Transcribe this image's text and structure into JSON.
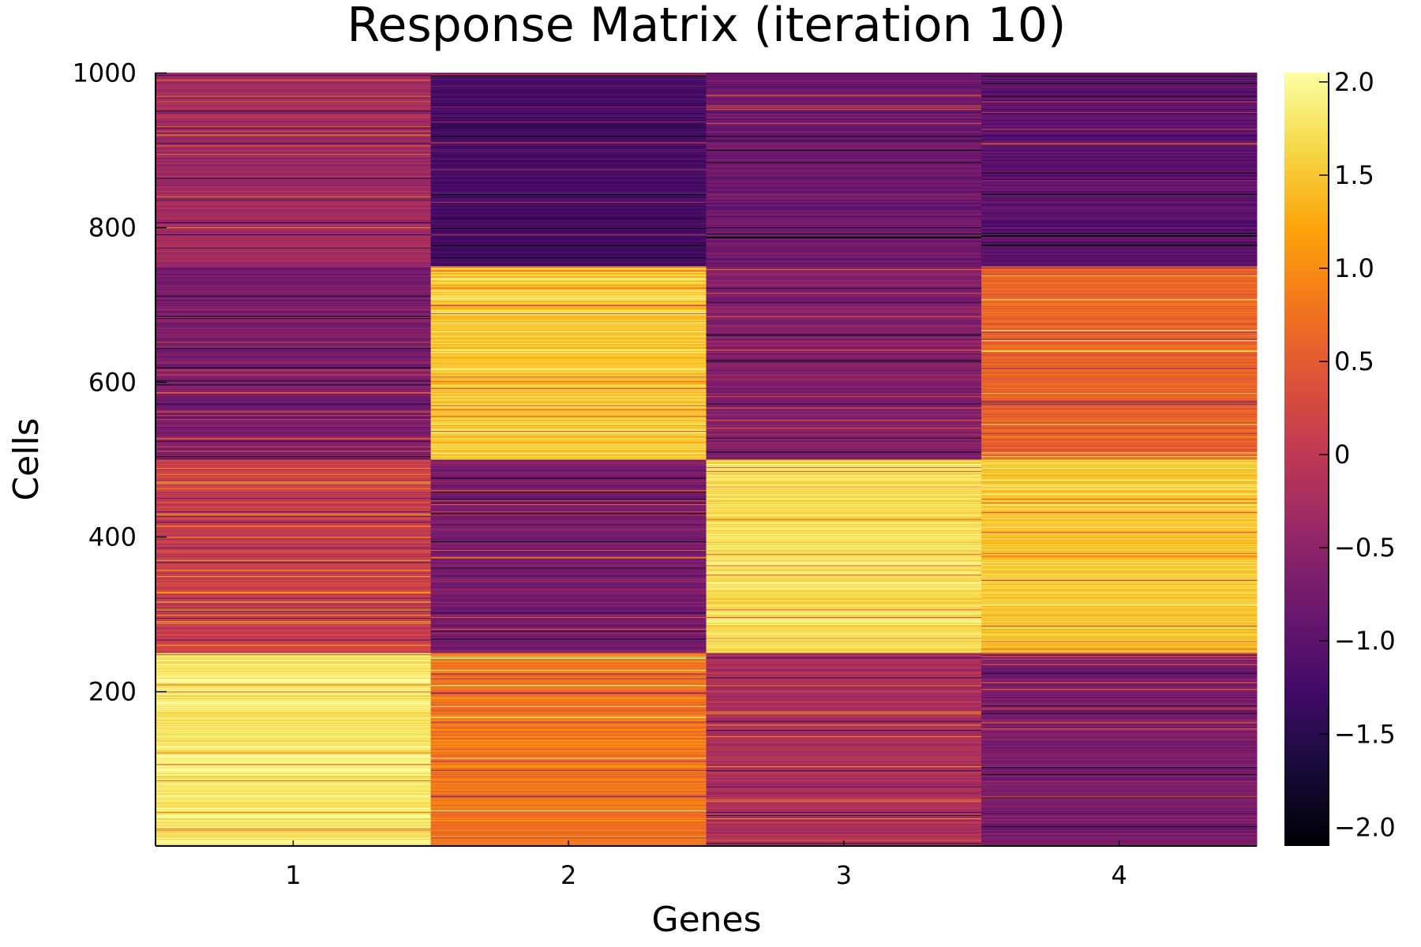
{
  "chart_data": {
    "type": "heatmap",
    "title": "Response Matrix (iteration 10)",
    "xlabel": "Genes",
    "ylabel": "Cells",
    "x_categories": [
      "1",
      "2",
      "3",
      "4"
    ],
    "ylim": [
      1,
      1000
    ],
    "y_ticks": [
      200,
      400,
      600,
      800,
      1000
    ],
    "colormap": "inferno",
    "colorbar": {
      "range": [
        -2.1,
        2.05
      ],
      "ticks": [
        -2.0,
        -1.5,
        -1.0,
        -0.5,
        0,
        0.5,
        1.0,
        1.5,
        2.0
      ],
      "tick_labels": [
        "−2.0",
        "−1.5",
        "−1.0",
        "−0.5",
        "0",
        "0.5",
        "1.0",
        "1.5",
        "2.0"
      ]
    },
    "blocks": [
      {
        "gene": "1",
        "cells": [
          1,
          250
        ],
        "value": 1.8
      },
      {
        "gene": "1",
        "cells": [
          251,
          500
        ],
        "value": 0.1
      },
      {
        "gene": "1",
        "cells": [
          501,
          750
        ],
        "value": -0.7
      },
      {
        "gene": "1",
        "cells": [
          751,
          1000
        ],
        "value": -0.3
      },
      {
        "gene": "2",
        "cells": [
          1,
          250
        ],
        "value": 0.8
      },
      {
        "gene": "2",
        "cells": [
          251,
          500
        ],
        "value": -0.7
      },
      {
        "gene": "2",
        "cells": [
          501,
          750
        ],
        "value": 1.5
      },
      {
        "gene": "2",
        "cells": [
          751,
          1000
        ],
        "value": -1.2
      },
      {
        "gene": "3",
        "cells": [
          1,
          250
        ],
        "value": -0.2
      },
      {
        "gene": "3",
        "cells": [
          251,
          500
        ],
        "value": 1.7
      },
      {
        "gene": "3",
        "cells": [
          501,
          750
        ],
        "value": -0.6
      },
      {
        "gene": "3",
        "cells": [
          751,
          1000
        ],
        "value": -0.8
      },
      {
        "gene": "4",
        "cells": [
          1,
          250
        ],
        "value": -0.7
      },
      {
        "gene": "4",
        "cells": [
          251,
          500
        ],
        "value": 1.5
      },
      {
        "gene": "4",
        "cells": [
          501,
          750
        ],
        "value": 0.6
      },
      {
        "gene": "4",
        "cells": [
          751,
          1000
        ],
        "value": -1.0
      }
    ],
    "grid": false,
    "legend": "colorbar-right"
  }
}
